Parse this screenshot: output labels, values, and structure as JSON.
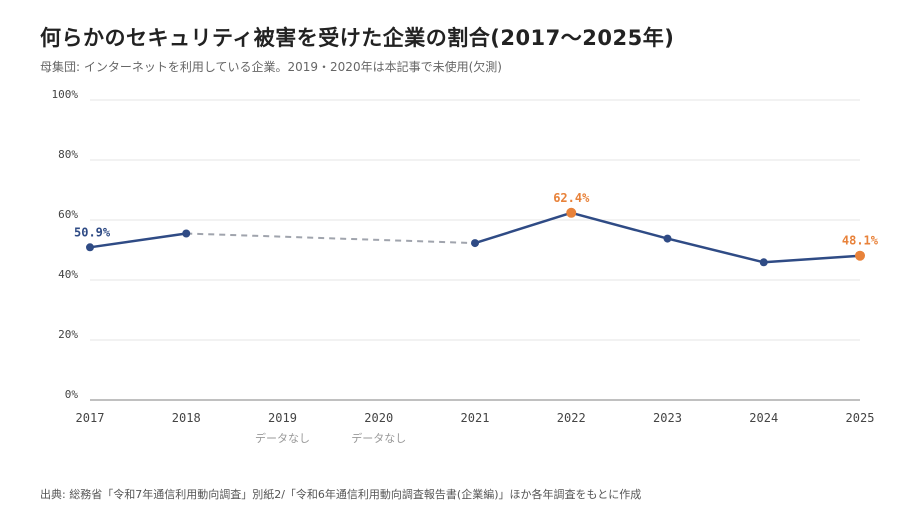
{
  "header": {
    "title": "何らかのセキュリティ被害を受けた企業の割合(2017〜2025年)",
    "subtitle": "母集団: インターネットを利用している企業。2019・2020年は本記事で未使用(欠測)"
  },
  "footer": {
    "source": "出典: 総務省「令和7年通信利用動向調査」別紙2/「令和6年通信利用動向調査報告書(企業編)」ほか各年調査をもとに作成"
  },
  "chart_data": {
    "type": "line",
    "title": "何らかのセキュリティ被害を受けた企業の割合(2017〜2025年)",
    "subtitle": "母集団: インターネットを利用している企業。2019・2020年は本記事で未使用(欠測)",
    "x": [
      "2017",
      "2018",
      "2019",
      "2020",
      "2021",
      "2022",
      "2023",
      "2024",
      "2025"
    ],
    "y": [
      50.9,
      55.5,
      null,
      null,
      52.3,
      62.4,
      53.8,
      45.9,
      48.1
    ],
    "ylim": [
      0,
      100
    ],
    "yticks": [
      "0%",
      "20%",
      "40%",
      "60%",
      "80%",
      "100%"
    ],
    "ytick_values": [
      0,
      20,
      40,
      60,
      80,
      100
    ],
    "missing_label": "データなし",
    "missing_years": [
      "2019",
      "2020"
    ],
    "data_labels": [
      {
        "x": "2017",
        "text": "50.9%"
      },
      {
        "x": "2022",
        "text": "62.4%"
      },
      {
        "x": "2025",
        "text": "48.1%"
      }
    ],
    "highlight_points": [
      "2022",
      "2025"
    ],
    "colors": {
      "line": "#2f4b85",
      "highlight": "#e8823a",
      "gap_line": "#a0a4ad",
      "grid": "#e6e6e6",
      "axis": "#9a9a9a",
      "tick_text": "#444444",
      "missing_text": "#999999"
    },
    "grid": true,
    "legend": "none"
  }
}
